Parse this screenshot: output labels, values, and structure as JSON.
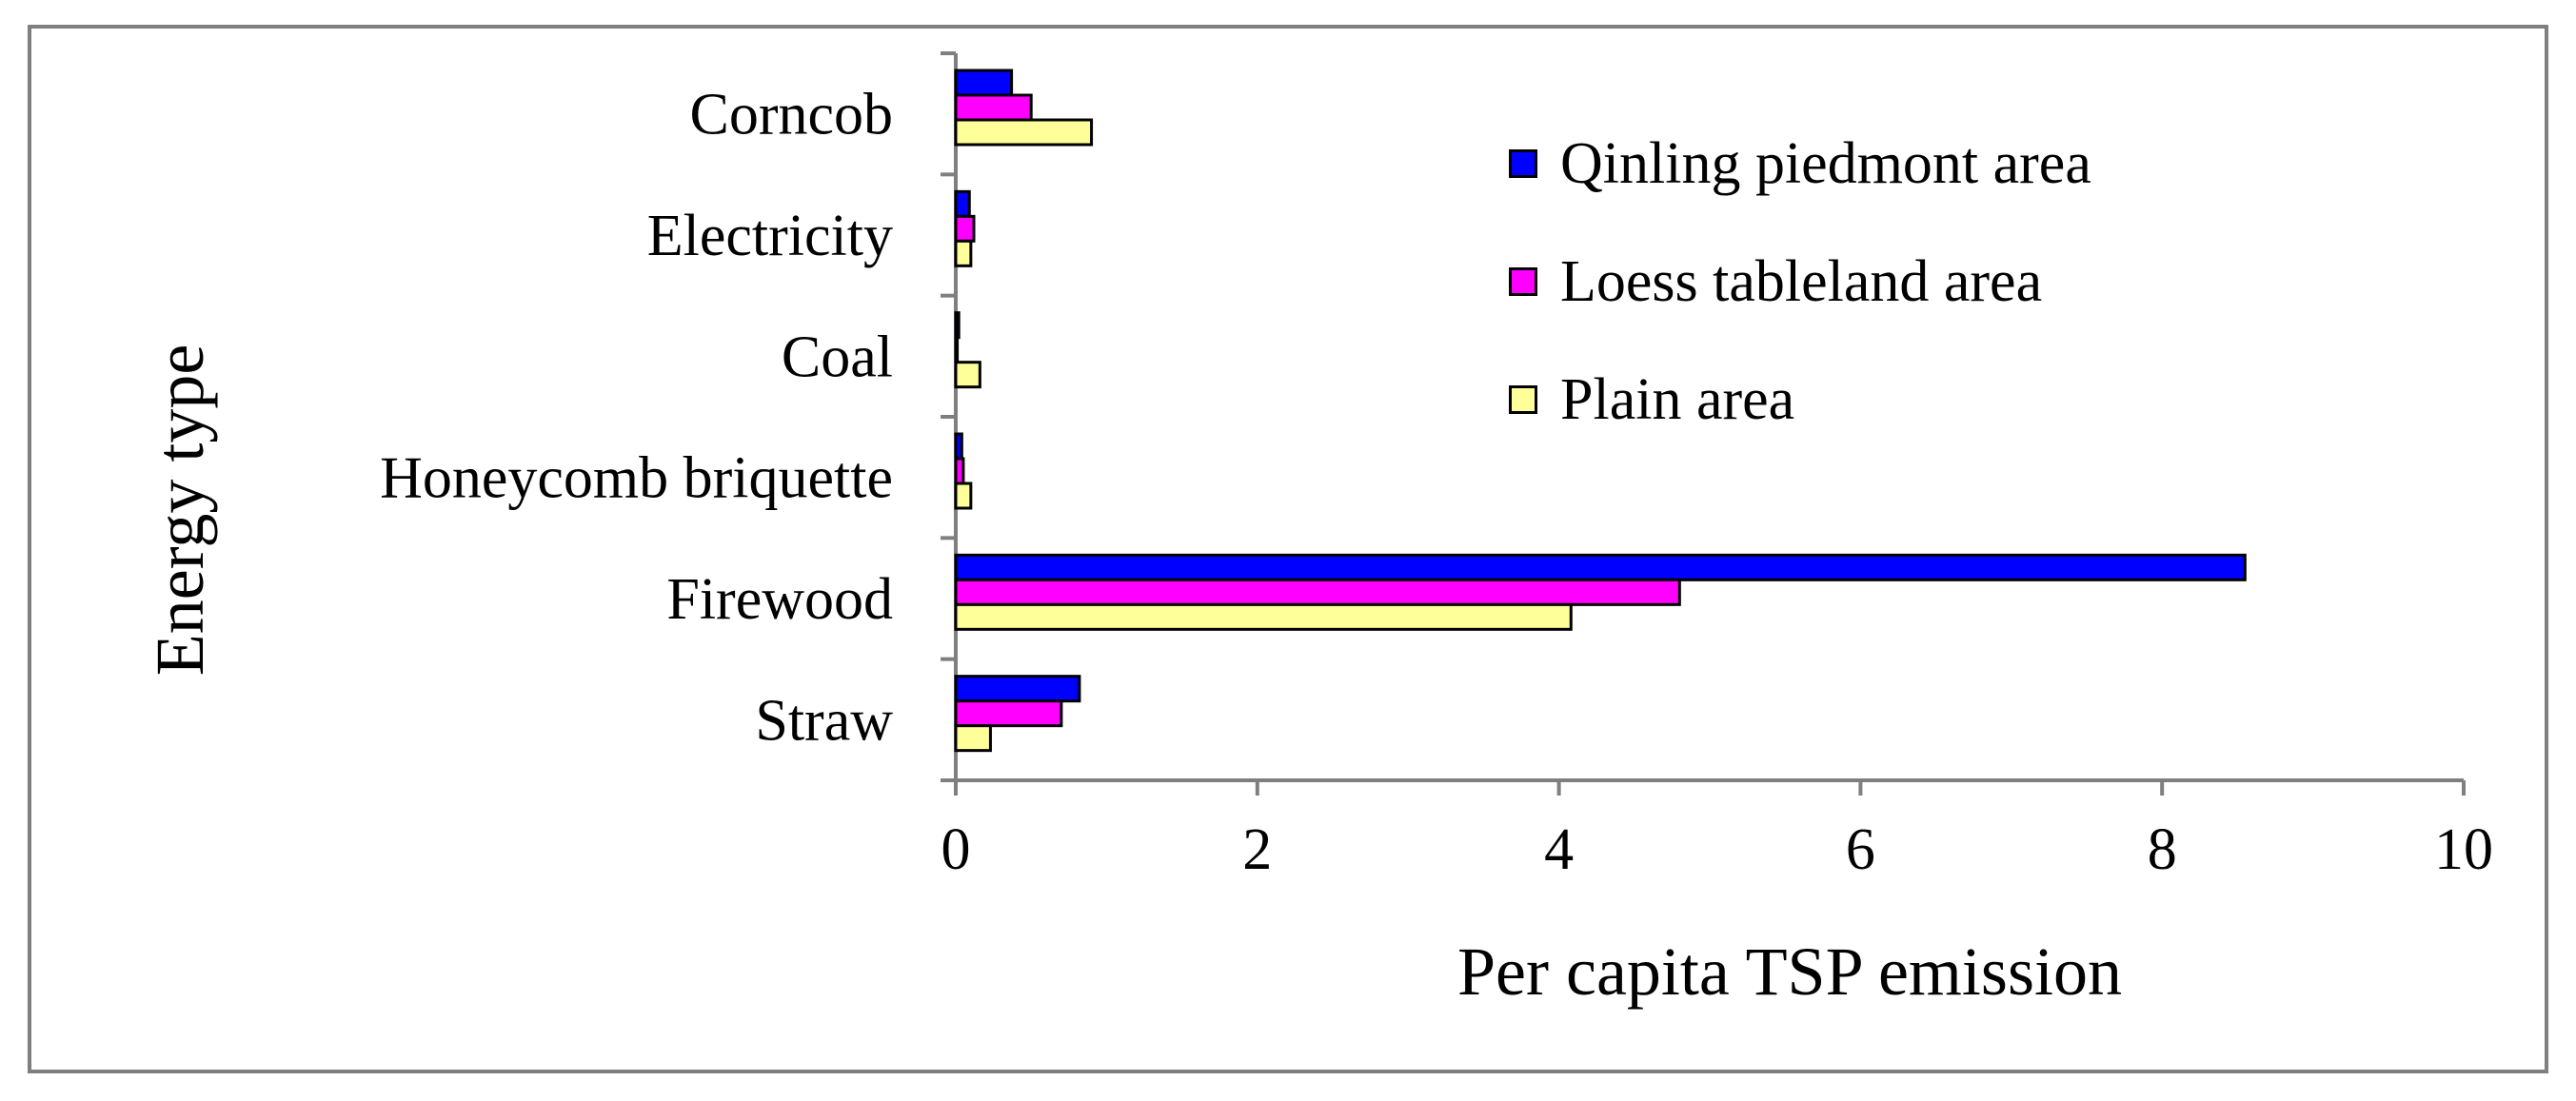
{
  "chart_data": {
    "type": "bar",
    "orientation": "horizontal",
    "title": "",
    "xlabel": "Per capita TSP emission",
    "ylabel": "Energy type",
    "xlim": [
      0,
      10
    ],
    "xticks": [
      "0",
      "2",
      "4",
      "6",
      "8",
      "10"
    ],
    "grid": false,
    "legend_position": "top-right",
    "categories": [
      "Corncob",
      "Electricity",
      "Coal",
      "Honeycomb briquette",
      "Firewood",
      "Straw"
    ],
    "series": [
      {
        "name": "Qinling piedmont area",
        "color": "#0000FF",
        "values": [
          0.37,
          0.09,
          0.02,
          0.04,
          8.55,
          0.82
        ]
      },
      {
        "name": "Loess tableland area",
        "color": "#FF00FF",
        "values": [
          0.5,
          0.12,
          0.01,
          0.05,
          4.8,
          0.7
        ]
      },
      {
        "name": "Plain area",
        "color": "#FFFF99",
        "values": [
          0.9,
          0.1,
          0.16,
          0.1,
          4.08,
          0.23
        ]
      }
    ]
  }
}
